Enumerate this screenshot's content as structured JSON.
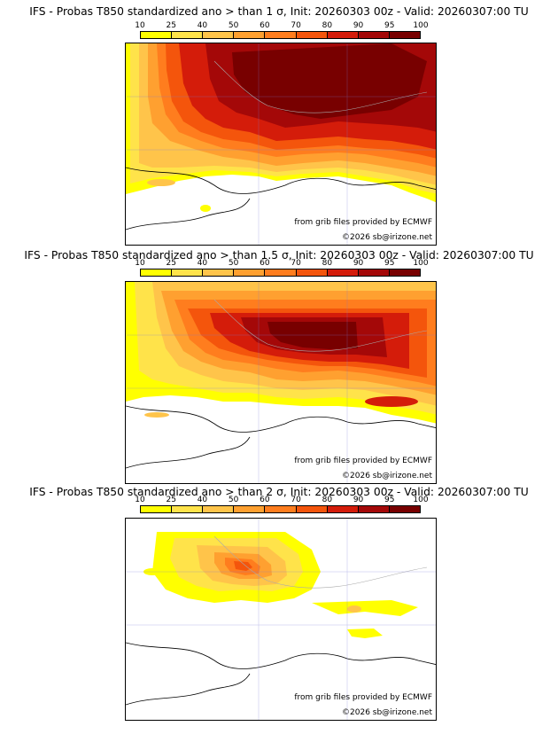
{
  "colorbar": {
    "ticks": [
      "10",
      "25",
      "40",
      "50",
      "60",
      "70",
      "80",
      "90",
      "95",
      "100"
    ],
    "colors": [
      "#ffff00",
      "#ffe34a",
      "#ffc44a",
      "#ffa030",
      "#ff7d1e",
      "#f4550c",
      "#d41c0a",
      "#a40808",
      "#780000"
    ]
  },
  "panels": [
    {
      "title": "IFS - Probas T850  standardized ano > than 1 σ, Init: 20260303 00z - Valid: 20260307:00 TU",
      "credit_grib": "from grib files provided by ECMWF",
      "credit_site": "©2026 sb@irizone.net"
    },
    {
      "title": "IFS - Probas T850  standardized ano > than 1.5 σ, Init: 20260303 00z - Valid: 20260307:00 TU",
      "credit_grib": "from grib files provided by ECMWF",
      "credit_site": "©2026 sb@irizone.net"
    },
    {
      "title": "IFS - Probas T850  standardized ano > than 2 σ, Init: 20260303 00z - Valid: 20260307:00 TU",
      "credit_grib": "from grib files provided by ECMWF",
      "credit_site": "©2026 sb@irizone.net"
    }
  ]
}
